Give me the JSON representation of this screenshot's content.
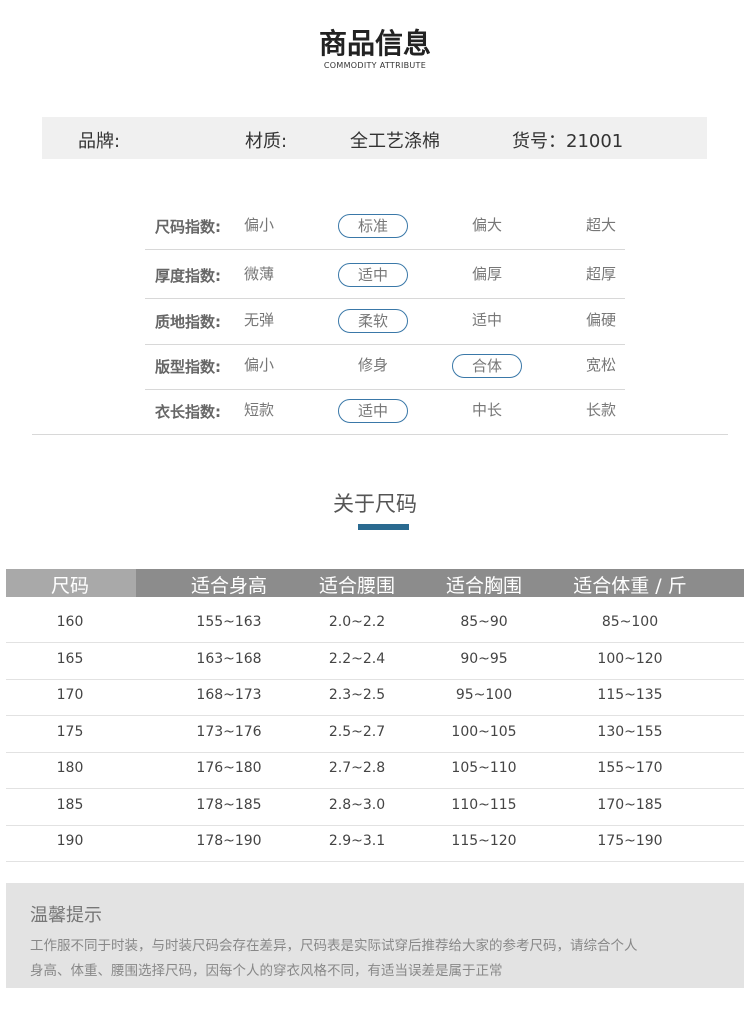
{
  "header": {
    "title": "商品信息",
    "subtitle": "COMMODITY ATTRIBUTE"
  },
  "attributes": {
    "brand_label": "品牌:",
    "material_label": "材质:",
    "material_value": "全工艺涤棉",
    "sku": "货号：21001"
  },
  "indices": [
    {
      "label": "尺码指数:",
      "options": [
        "偏小",
        "标准",
        "偏大",
        "超大"
      ],
      "selected": 1
    },
    {
      "label": "厚度指数:",
      "options": [
        "微薄",
        "适中",
        "偏厚",
        "超厚"
      ],
      "selected": 1
    },
    {
      "label": "质地指数:",
      "options": [
        "无弹",
        "柔软",
        "适中",
        "偏硬"
      ],
      "selected": 1
    },
    {
      "label": "版型指数:",
      "options": [
        "偏小",
        "修身",
        "合体",
        "宽松"
      ],
      "selected": 2
    },
    {
      "label": "衣长指数:",
      "options": [
        "短款",
        "适中",
        "中长",
        "长款"
      ],
      "selected": 1
    }
  ],
  "size_section": {
    "title": "关于尺码",
    "accent": "#2a6a90"
  },
  "size_table": {
    "headers": [
      "尺码",
      "适合身高",
      "适合腰围",
      "适合胸围",
      "适合体重 / 斤"
    ],
    "rows": [
      [
        "160",
        "155~163",
        "2.0~2.2",
        "85~90",
        "85~100"
      ],
      [
        "165",
        "163~168",
        "2.2~2.4",
        "90~95",
        "100~120"
      ],
      [
        "170",
        "168~173",
        "2.3~2.5",
        "95~100",
        "115~135"
      ],
      [
        "175",
        "173~176",
        "2.5~2.7",
        "100~105",
        "130~155"
      ],
      [
        "180",
        "176~180",
        "2.7~2.8",
        "105~110",
        "155~170"
      ],
      [
        "185",
        "178~185",
        "2.8~3.0",
        "110~115",
        "170~185"
      ],
      [
        "190",
        "178~190",
        "2.9~3.1",
        "115~120",
        "175~190"
      ]
    ]
  },
  "tip": {
    "title": "温馨提示",
    "lines": [
      "工作服不同于时装，与时装尺码会存在差异，尺码表是实际试穿后推荐给大家的参考尺码，请综合个人",
      "身高、体重、腰围选择尺码，因每个人的穿衣风格不同，有适当误差是属于正常"
    ]
  }
}
